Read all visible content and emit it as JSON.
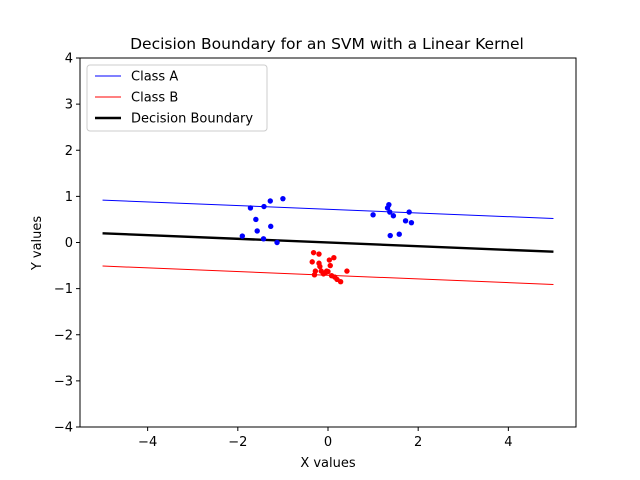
{
  "chart_data": {
    "type": "scatter",
    "title": "Decision Boundary for an SVM with a Linear Kernel",
    "xlabel": "X values",
    "ylabel": "Y values",
    "xlim": [
      -5.5,
      5.5
    ],
    "ylim": [
      -4,
      4
    ],
    "xticks": [
      -4,
      -2,
      0,
      2,
      4
    ],
    "xtick_labels": [
      "−4",
      "−2",
      "0",
      "2",
      "4"
    ],
    "yticks": [
      -4,
      -3,
      -2,
      -1,
      0,
      1,
      2,
      3,
      4
    ],
    "ytick_labels": [
      "−4",
      "−3",
      "−2",
      "−1",
      "0",
      "1",
      "2",
      "3",
      "4"
    ],
    "grid": false,
    "legend_position": "top-left",
    "lines": [
      {
        "name": "Class A",
        "color": "#0000ff",
        "width": "thin",
        "x": [
          -5,
          5
        ],
        "y": [
          0.92,
          0.52
        ]
      },
      {
        "name": "Class B",
        "color": "#ff0000",
        "width": "thin",
        "x": [
          -5,
          5
        ],
        "y": [
          -0.51,
          -0.91
        ]
      },
      {
        "name": "Decision Boundary",
        "color": "#000000",
        "width": "thick",
        "x": [
          -5,
          5
        ],
        "y": [
          0.2,
          -0.2
        ]
      }
    ],
    "scatter": [
      {
        "color": "#0000ff",
        "points": [
          [
            -1.9,
            0.14
          ],
          [
            -1.72,
            0.75
          ],
          [
            -1.6,
            0.5
          ],
          [
            -1.57,
            0.25
          ],
          [
            -1.43,
            0.08
          ],
          [
            -1.42,
            0.78
          ],
          [
            -1.28,
            0.9
          ],
          [
            -1.27,
            0.35
          ],
          [
            -1.13,
            0.0
          ],
          [
            -1.0,
            0.95
          ],
          [
            1.0,
            0.6
          ],
          [
            1.32,
            0.75
          ],
          [
            1.35,
            0.82
          ],
          [
            1.37,
            0.66
          ],
          [
            1.38,
            0.15
          ],
          [
            1.45,
            0.58
          ],
          [
            1.58,
            0.18
          ],
          [
            1.72,
            0.47
          ],
          [
            1.8,
            0.66
          ],
          [
            1.85,
            0.43
          ]
        ]
      },
      {
        "color": "#ff0000",
        "points": [
          [
            -0.32,
            -0.22
          ],
          [
            -0.35,
            -0.42
          ],
          [
            -0.28,
            -0.62
          ],
          [
            -0.3,
            -0.7
          ],
          [
            -0.2,
            -0.25
          ],
          [
            -0.2,
            -0.45
          ],
          [
            -0.18,
            -0.52
          ],
          [
            -0.15,
            -0.62
          ],
          [
            -0.1,
            -0.68
          ],
          [
            -0.05,
            -0.65
          ],
          [
            -0.03,
            -0.62
          ],
          [
            0.0,
            -0.63
          ],
          [
            0.03,
            -0.38
          ],
          [
            0.05,
            -0.5
          ],
          [
            0.08,
            -0.72
          ],
          [
            0.13,
            -0.33
          ],
          [
            0.15,
            -0.75
          ],
          [
            0.2,
            -0.8
          ],
          [
            0.28,
            -0.85
          ],
          [
            0.42,
            -0.62
          ]
        ]
      }
    ],
    "legend": [
      "Class A",
      "Class B",
      "Decision Boundary"
    ]
  }
}
